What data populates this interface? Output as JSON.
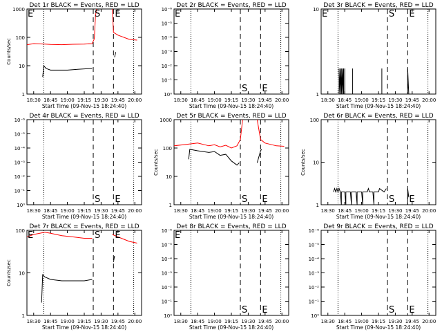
{
  "chart_data": [
    {
      "type": "line",
      "title": "Det 1r BLACK = Events, RED = LLD",
      "xlabel": "Start Time (09-Nov-15 18:24:40)",
      "ylabel": "Counts/sec",
      "x_ticks": [
        "18:30",
        "18:45",
        "19:00",
        "19:15",
        "19:30",
        "19:45",
        "20:00"
      ],
      "y_ticks": [
        "1",
        "10",
        "100",
        "1000"
      ],
      "ylim": [
        1,
        1000
      ],
      "y_scale": "log",
      "markers": [
        {
          "label": "E",
          "x": "18:24",
          "style": "none"
        },
        {
          "label": "",
          "x": "18:39",
          "style": "dotted"
        },
        {
          "label": "S",
          "x": "19:23",
          "style": "dashed"
        },
        {
          "label": "E",
          "x": "19:41",
          "style": "dashed"
        },
        {
          "label": "",
          "x": "19:59",
          "style": "dotted"
        }
      ],
      "series": [
        {
          "color": "#ff0000",
          "segments": [
            [
              [
                "18:24",
                55
              ],
              [
                "18:30",
                60
              ],
              [
                "18:40",
                58
              ],
              [
                "18:45",
                56
              ],
              [
                "18:55",
                55
              ],
              [
                "19:05",
                57
              ],
              [
                "19:15",
                58
              ],
              [
                "19:22",
                60
              ],
              [
                "19:24",
                90
              ],
              [
                "19:25",
                600
              ],
              [
                "19:26",
                1000
              ]
            ],
            [
              [
                "19:40",
                1000
              ],
              [
                "19:41",
                150
              ],
              [
                "19:45",
                120
              ],
              [
                "19:55",
                85
              ],
              [
                "20:02",
                80
              ]
            ]
          ]
        },
        {
          "color": "#000000",
          "segments": [
            [
              [
                "18:38",
                4
              ],
              [
                "18:39",
                10
              ],
              [
                "18:41",
                8
              ],
              [
                "18:45",
                7
              ],
              [
                "19:00",
                7
              ],
              [
                "19:10",
                7.5
              ],
              [
                "19:22",
                8
              ]
            ],
            [
              [
                "19:42",
                20
              ],
              [
                "19:43",
                30
              ]
            ]
          ]
        }
      ]
    },
    {
      "type": "line",
      "title": "Det 2r BLACK = Events, RED = LLD",
      "xlabel": "Start Time (09-Nov-15 18:24:40)",
      "ylabel": "",
      "x_ticks": [
        "18:30",
        "18:45",
        "19:00",
        "19:15",
        "19:30",
        "19:45",
        "20:00"
      ],
      "y_ticks": [
        "10⁰",
        "10⁻¹",
        "10⁻²",
        "10⁻³",
        "10⁻⁴",
        "10⁻⁵",
        "10⁻⁶"
      ],
      "y_scale": "log",
      "markers": [
        {
          "label": "E",
          "x": "18:24",
          "style": "none"
        },
        {
          "label": "",
          "x": "18:39",
          "style": "dotted"
        },
        {
          "label": "S",
          "x": "19:23",
          "style": "dashed"
        },
        {
          "label": "E",
          "x": "19:41",
          "style": "dashed"
        },
        {
          "label": "",
          "x": "19:59",
          "style": "dotted"
        }
      ],
      "series": []
    },
    {
      "type": "line",
      "title": "Det 3r BLACK = Events, RED = LLD",
      "xlabel": "Start Time (09-Nov-15 18:24:40)",
      "ylabel": "",
      "x_ticks": [
        "18:30",
        "18:45",
        "19:00",
        "19:15",
        "19:30",
        "19:45",
        "20:00"
      ],
      "y_ticks": [
        "1",
        "10"
      ],
      "ylim": [
        1,
        10
      ],
      "y_scale": "log",
      "markers": [
        {
          "label": "E",
          "x": "18:24",
          "style": "none"
        },
        {
          "label": "",
          "x": "18:39",
          "style": "dotted"
        },
        {
          "label": "S",
          "x": "19:23",
          "style": "dashed"
        },
        {
          "label": "E",
          "x": "19:41",
          "style": "dashed"
        },
        {
          "label": "",
          "x": "19:59",
          "style": "dotted"
        }
      ],
      "series": [
        {
          "color": "#000000",
          "segments": [
            [
              [
                "18:40",
                1
              ],
              [
                "18:40",
                2
              ],
              [
                "18:40",
                1
              ],
              [
                "18:41",
                2
              ],
              [
                "18:41",
                1
              ],
              [
                "18:42",
                2
              ],
              [
                "18:42",
                1
              ],
              [
                "18:43",
                2
              ],
              [
                "18:43",
                1
              ],
              [
                "18:44",
                2
              ],
              [
                "18:44",
                1
              ],
              [
                "18:45",
                1
              ],
              [
                "18:45",
                2
              ],
              [
                "18:45",
                1
              ]
            ],
            [
              [
                "18:52",
                1
              ],
              [
                "18:52",
                2
              ],
              [
                "18:52",
                1
              ]
            ],
            [
              [
                "19:18",
                1
              ],
              [
                "19:18",
                2
              ],
              [
                "19:18",
                1
              ]
            ],
            [
              [
                "19:41",
                1
              ],
              [
                "19:41",
                2
              ],
              [
                "19:42",
                1
              ]
            ]
          ]
        }
      ]
    },
    {
      "type": "line",
      "title": "Det 4r BLACK = Events, RED = LLD",
      "xlabel": "Start Time (09-Nov-15 18:24:40)",
      "ylabel": "",
      "x_ticks": [
        "18:30",
        "18:45",
        "19:00",
        "19:15",
        "19:30",
        "19:45",
        "20:00"
      ],
      "y_ticks": [
        "10⁰",
        "10⁻¹",
        "10⁻²",
        "10⁻³",
        "10⁻⁴",
        "10⁻⁵",
        "10⁻⁶"
      ],
      "y_scale": "log",
      "markers": [
        {
          "label": "",
          "x": "18:39",
          "style": "dotted"
        },
        {
          "label": "S",
          "x": "19:23",
          "style": "dashed"
        },
        {
          "label": "E",
          "x": "19:41",
          "style": "dashed"
        },
        {
          "label": "",
          "x": "19:59",
          "style": "dotted"
        }
      ],
      "series": []
    },
    {
      "type": "line",
      "title": "Det 5r BLACK = Events, RED = LLD",
      "xlabel": "Start Time (09-Nov-15 18:24:40)",
      "ylabel": "Counts/sec",
      "x_ticks": [
        "18:30",
        "18:45",
        "19:00",
        "19:15",
        "19:30",
        "19:45",
        "20:00"
      ],
      "y_ticks": [
        "1",
        "10",
        "100",
        "1000"
      ],
      "ylim": [
        1,
        1000
      ],
      "y_scale": "log",
      "markers": [
        {
          "label": "",
          "x": "18:39",
          "style": "dotted"
        },
        {
          "label": "S",
          "x": "19:23",
          "style": "dashed"
        },
        {
          "label": "E",
          "x": "19:41",
          "style": "dashed"
        },
        {
          "label": "",
          "x": "19:59",
          "style": "dotted"
        }
      ],
      "series": [
        {
          "color": "#ff0000",
          "segments": [
            [
              [
                "18:24",
                120
              ],
              [
                "18:35",
                135
              ],
              [
                "18:45",
                150
              ],
              [
                "18:55",
                120
              ],
              [
                "19:00",
                130
              ],
              [
                "19:05",
                110
              ],
              [
                "19:10",
                125
              ],
              [
                "19:15",
                100
              ],
              [
                "19:20",
                120
              ],
              [
                "19:23",
                200
              ],
              [
                "19:25",
                1000
              ]
            ],
            [
              [
                "19:38",
                1000
              ],
              [
                "19:41",
                200
              ],
              [
                "19:45",
                150
              ],
              [
                "19:55",
                120
              ],
              [
                "20:02",
                115
              ]
            ]
          ]
        },
        {
          "color": "#000000",
          "segments": [
            [
              [
                "18:37",
                40
              ],
              [
                "18:38",
                90
              ],
              [
                "18:45",
                80
              ],
              [
                "18:55",
                70
              ],
              [
                "19:00",
                75
              ],
              [
                "19:05",
                55
              ],
              [
                "19:10",
                60
              ],
              [
                "19:15",
                35
              ],
              [
                "19:20",
                25
              ],
              [
                "19:22",
                30
              ]
            ],
            [
              [
                "19:38",
                30
              ],
              [
                "19:41",
                80
              ],
              [
                "19:42",
                90
              ]
            ]
          ]
        }
      ]
    },
    {
      "type": "line",
      "title": "Det 6r BLACK = Events, RED = LLD",
      "xlabel": "Start Time (09-Nov-15 18:24:40)",
      "ylabel": "Counts/sec",
      "x_ticks": [
        "18:30",
        "18:45",
        "19:00",
        "19:15",
        "19:30",
        "19:45",
        "20:00"
      ],
      "y_ticks": [
        "1",
        "10",
        "100"
      ],
      "ylim": [
        1,
        100
      ],
      "y_scale": "log",
      "markers": [
        {
          "label": "",
          "x": "18:39",
          "style": "dotted"
        },
        {
          "label": "S",
          "x": "19:23",
          "style": "dashed"
        },
        {
          "label": "E",
          "x": "19:41",
          "style": "dashed"
        },
        {
          "label": "",
          "x": "19:59",
          "style": "dotted"
        }
      ],
      "series": [
        {
          "color": "#000000",
          "segments": [
            [
              [
                "18:35",
                2
              ],
              [
                "18:36",
                2.4
              ],
              [
                "18:37",
                2
              ],
              [
                "18:38",
                2.4
              ],
              [
                "18:39",
                2
              ],
              [
                "18:40",
                2.4
              ],
              [
                "18:41",
                2
              ],
              [
                "18:42",
                1
              ],
              [
                "18:42",
                2
              ],
              [
                "18:45",
                2
              ],
              [
                "18:46",
                1
              ],
              [
                "18:46",
                2
              ],
              [
                "18:50",
                2
              ],
              [
                "18:51",
                1
              ],
              [
                "18:51",
                2
              ],
              [
                "18:55",
                2
              ],
              [
                "18:56",
                1
              ],
              [
                "18:56",
                2
              ],
              [
                "19:00",
                2
              ],
              [
                "19:01",
                1
              ],
              [
                "19:01",
                2
              ],
              [
                "19:05",
                2
              ],
              [
                "19:06",
                2.4
              ],
              [
                "19:07",
                2
              ],
              [
                "19:10",
                2
              ],
              [
                "19:11",
                1
              ],
              [
                "19:11",
                2
              ],
              [
                "19:15",
                2
              ],
              [
                "19:16",
                2.4
              ],
              [
                "19:20",
                2
              ],
              [
                "19:22",
                2.4
              ]
            ],
            [
              [
                "19:41",
                1
              ],
              [
                "19:41",
                2.4
              ],
              [
                "19:42",
                1.5
              ]
            ]
          ]
        }
      ]
    },
    {
      "type": "line",
      "title": "Det 7r BLACK = Events, RED = LLD",
      "xlabel": "Start Time (09-Nov-15 18:24:40)",
      "ylabel": "Counts/sec",
      "x_ticks": [
        "18:30",
        "18:45",
        "19:00",
        "19:15",
        "19:30",
        "19:45",
        "20:00"
      ],
      "y_ticks": [
        "1",
        "10",
        "100"
      ],
      "ylim": [
        1,
        100
      ],
      "y_scale": "log",
      "markers": [
        {
          "label": "E",
          "x": "18:24",
          "style": "none"
        },
        {
          "label": "",
          "x": "18:39",
          "style": "dotted"
        },
        {
          "label": "S",
          "x": "19:23",
          "style": "dashed"
        },
        {
          "label": "E",
          "x": "19:41",
          "style": "dashed"
        },
        {
          "label": "",
          "x": "19:59",
          "style": "dotted"
        }
      ],
      "series": [
        {
          "color": "#ff0000",
          "segments": [
            [
              [
                "18:24",
                70
              ],
              [
                "18:30",
                80
              ],
              [
                "18:40",
                90
              ],
              [
                "18:45",
                85
              ],
              [
                "18:55",
                75
              ],
              [
                "19:05",
                70
              ],
              [
                "19:15",
                65
              ],
              [
                "19:22",
                65
              ]
            ],
            [
              [
                "19:40",
                80
              ],
              [
                "19:45",
                70
              ],
              [
                "19:55",
                55
              ],
              [
                "20:02",
                50
              ]
            ]
          ]
        },
        {
          "color": "#000000",
          "segments": [
            [
              [
                "18:37",
                2
              ],
              [
                "18:38",
                9
              ],
              [
                "18:40",
                8
              ],
              [
                "18:45",
                7
              ],
              [
                "18:55",
                6.5
              ],
              [
                "19:05",
                6.5
              ],
              [
                "19:15",
                6.5
              ],
              [
                "19:22",
                7
              ]
            ],
            [
              [
                "19:41",
                18
              ],
              [
                "19:42",
                25
              ]
            ]
          ]
        }
      ]
    },
    {
      "type": "line",
      "title": "Det 8r BLACK = Events, RED = LLD",
      "xlabel": "Start Time (09-Nov-15 18:24:40)",
      "ylabel": "",
      "x_ticks": [
        "18:30",
        "18:45",
        "19:00",
        "19:15",
        "19:30",
        "19:45",
        "20:00"
      ],
      "y_ticks": [
        "10⁰",
        "10⁻¹",
        "10⁻²",
        "10⁻³",
        "10⁻⁴",
        "10⁻⁵",
        "10⁻⁶"
      ],
      "y_scale": "log",
      "markers": [
        {
          "label": "E",
          "x": "18:24",
          "style": "none"
        },
        {
          "label": "",
          "x": "18:39",
          "style": "dotted"
        },
        {
          "label": "S",
          "x": "19:23",
          "style": "dashed"
        },
        {
          "label": "E",
          "x": "19:41",
          "style": "dashed"
        },
        {
          "label": "",
          "x": "19:59",
          "style": "dotted"
        }
      ],
      "series": []
    },
    {
      "type": "line",
      "title": "Det 9r BLACK = Events, RED = LLD",
      "xlabel": "Start Time (09-Nov-15 18:24:40)",
      "ylabel": "",
      "x_ticks": [
        "18:30",
        "18:45",
        "19:00",
        "19:15",
        "19:30",
        "19:45",
        "20:00"
      ],
      "y_ticks": [
        "10⁰",
        "10⁻¹",
        "10⁻²",
        "10⁻³",
        "10⁻⁴",
        "10⁻⁵",
        "10⁻⁶"
      ],
      "y_scale": "log",
      "markers": [
        {
          "label": "",
          "x": "18:39",
          "style": "dotted"
        },
        {
          "label": "S",
          "x": "19:23",
          "style": "dashed"
        },
        {
          "label": "E",
          "x": "19:41",
          "style": "dashed"
        },
        {
          "label": "",
          "x": "19:59",
          "style": "dotted"
        }
      ],
      "series": []
    }
  ]
}
